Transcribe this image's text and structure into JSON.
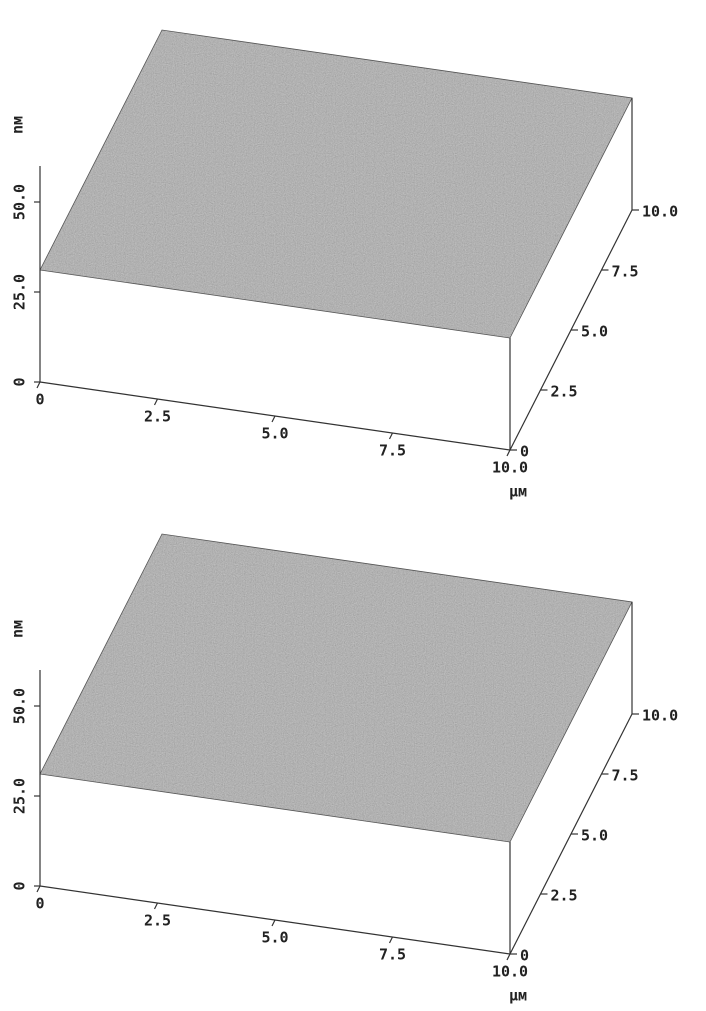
{
  "chart_data": [
    {
      "type": "surface",
      "z_label": "nм",
      "x_unit": "μм",
      "xlim": [
        0,
        10
      ],
      "xticks": [
        0,
        2.5,
        {
          "value": 5,
          "label": "5.0"
        },
        7.5,
        {
          "value": 10,
          "label": "10.0"
        }
      ],
      "ylim": [
        0,
        10
      ],
      "yticks": [
        0,
        2.5,
        {
          "value": 5,
          "label": "5.0"
        },
        7.5,
        {
          "value": 10,
          "label": "10.0"
        }
      ],
      "zlim": [
        0,
        60
      ],
      "zticks": [
        0,
        {
          "value": 25,
          "label": "25.0"
        },
        {
          "value": 50,
          "label": "50.0"
        }
      ]
    },
    {
      "type": "surface",
      "z_label": "nм",
      "x_unit": "μм",
      "xlim": [
        0,
        10
      ],
      "xticks": [
        0,
        2.5,
        {
          "value": 5,
          "label": "5.0"
        },
        7.5,
        {
          "value": 10,
          "label": "10.0"
        }
      ],
      "ylim": [
        0,
        10
      ],
      "yticks": [
        0,
        2.5,
        {
          "value": 5,
          "label": "5.0"
        },
        7.5,
        {
          "value": 10,
          "label": "10.0"
        }
      ],
      "zlim": [
        0,
        60
      ],
      "zticks": [
        0,
        {
          "value": 25,
          "label": "25.0"
        },
        {
          "value": 50,
          "label": "50.0"
        }
      ]
    }
  ]
}
